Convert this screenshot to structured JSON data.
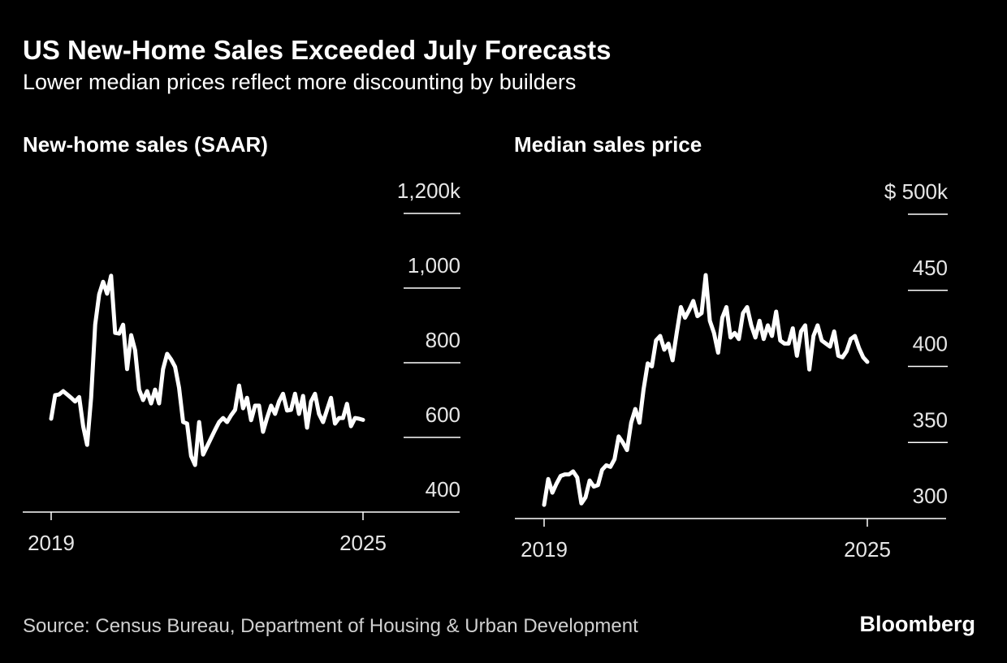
{
  "title": "US New-Home Sales Exceeded July Forecasts",
  "subtitle": "Lower median prices reflect more discounting by builders",
  "source": "Source: Census Bureau, Department of Housing & Urban Development",
  "brand": "Bloomberg",
  "chart_data": [
    {
      "type": "line",
      "title": "New-home sales (SAAR)",
      "color": "#ffffff",
      "categories": [
        "2019",
        null,
        null,
        null,
        null,
        null,
        null,
        null,
        null,
        null,
        null,
        null,
        null,
        null,
        null,
        null,
        null,
        null,
        null,
        null,
        null,
        null,
        null,
        null,
        null,
        null,
        null,
        null,
        null,
        null,
        null,
        null,
        null,
        null,
        null,
        null,
        null,
        null,
        null,
        null,
        null,
        null,
        null,
        null,
        null,
        null,
        null,
        null,
        null,
        null,
        null,
        null,
        null,
        null,
        null,
        null,
        null,
        null,
        null,
        null,
        null,
        null,
        null,
        null,
        null,
        null,
        null,
        null,
        null,
        null,
        null,
        null,
        null,
        null,
        null,
        null,
        null,
        null,
        "2025"
      ],
      "values": [
        650,
        713,
        715,
        724,
        715,
        706,
        696,
        708,
        630,
        580,
        706,
        902,
        983,
        1017,
        985,
        1033,
        880,
        878,
        902,
        783,
        874,
        833,
        728,
        700,
        724,
        691,
        728,
        691,
        783,
        824,
        809,
        789,
        733,
        641,
        637,
        550,
        526,
        641,
        554,
        576,
        598,
        620,
        641,
        652,
        641,
        659,
        674,
        739,
        678,
        706,
        646,
        685,
        685,
        615,
        652,
        685,
        663,
        696,
        717,
        672,
        674,
        717,
        663,
        711,
        626,
        696,
        717,
        663,
        641,
        674,
        706,
        637,
        652,
        652,
        690,
        630,
        652,
        650,
        647
      ],
      "ylim": [
        400,
        1200
      ],
      "yticks": [
        400,
        600,
        800,
        {
          "value": 1000,
          "label": "1,000"
        },
        {
          "value": 1200,
          "label": "1,200k"
        }
      ]
    },
    {
      "type": "line",
      "title": "Median sales price",
      "color": "#ffffff",
      "categories": [
        "2019",
        null,
        null,
        null,
        null,
        null,
        null,
        null,
        null,
        null,
        null,
        null,
        null,
        null,
        null,
        null,
        null,
        null,
        null,
        null,
        null,
        null,
        null,
        null,
        null,
        null,
        null,
        null,
        null,
        null,
        null,
        null,
        null,
        null,
        null,
        null,
        null,
        null,
        null,
        null,
        null,
        null,
        null,
        null,
        null,
        null,
        null,
        null,
        null,
        null,
        null,
        null,
        null,
        null,
        null,
        null,
        null,
        null,
        null,
        null,
        null,
        null,
        null,
        null,
        null,
        null,
        null,
        null,
        null,
        null,
        null,
        null,
        null,
        null,
        null,
        null,
        null,
        null,
        "2025"
      ],
      "values": [
        309,
        326,
        317,
        323,
        328,
        329,
        329,
        331,
        327,
        310,
        314,
        325,
        321,
        322,
        332,
        335,
        334,
        339,
        354,
        350,
        345,
        363,
        372,
        363,
        385,
        402,
        400,
        417,
        420,
        411,
        415,
        404,
        422,
        439,
        432,
        437,
        443,
        433,
        435,
        460,
        430,
        422,
        409,
        432,
        439,
        419,
        422,
        418,
        435,
        439,
        427,
        419,
        430,
        418,
        427,
        420,
        436,
        417,
        415,
        415,
        425,
        407,
        423,
        427,
        398,
        420,
        427,
        417,
        415,
        413,
        423,
        407,
        406,
        410,
        418,
        420,
        412,
        406,
        403
      ],
      "ylim": [
        300,
        500
      ],
      "yticks": [
        300,
        350,
        400,
        450,
        {
          "value": 500,
          "label": "$ 500k"
        }
      ]
    }
  ]
}
